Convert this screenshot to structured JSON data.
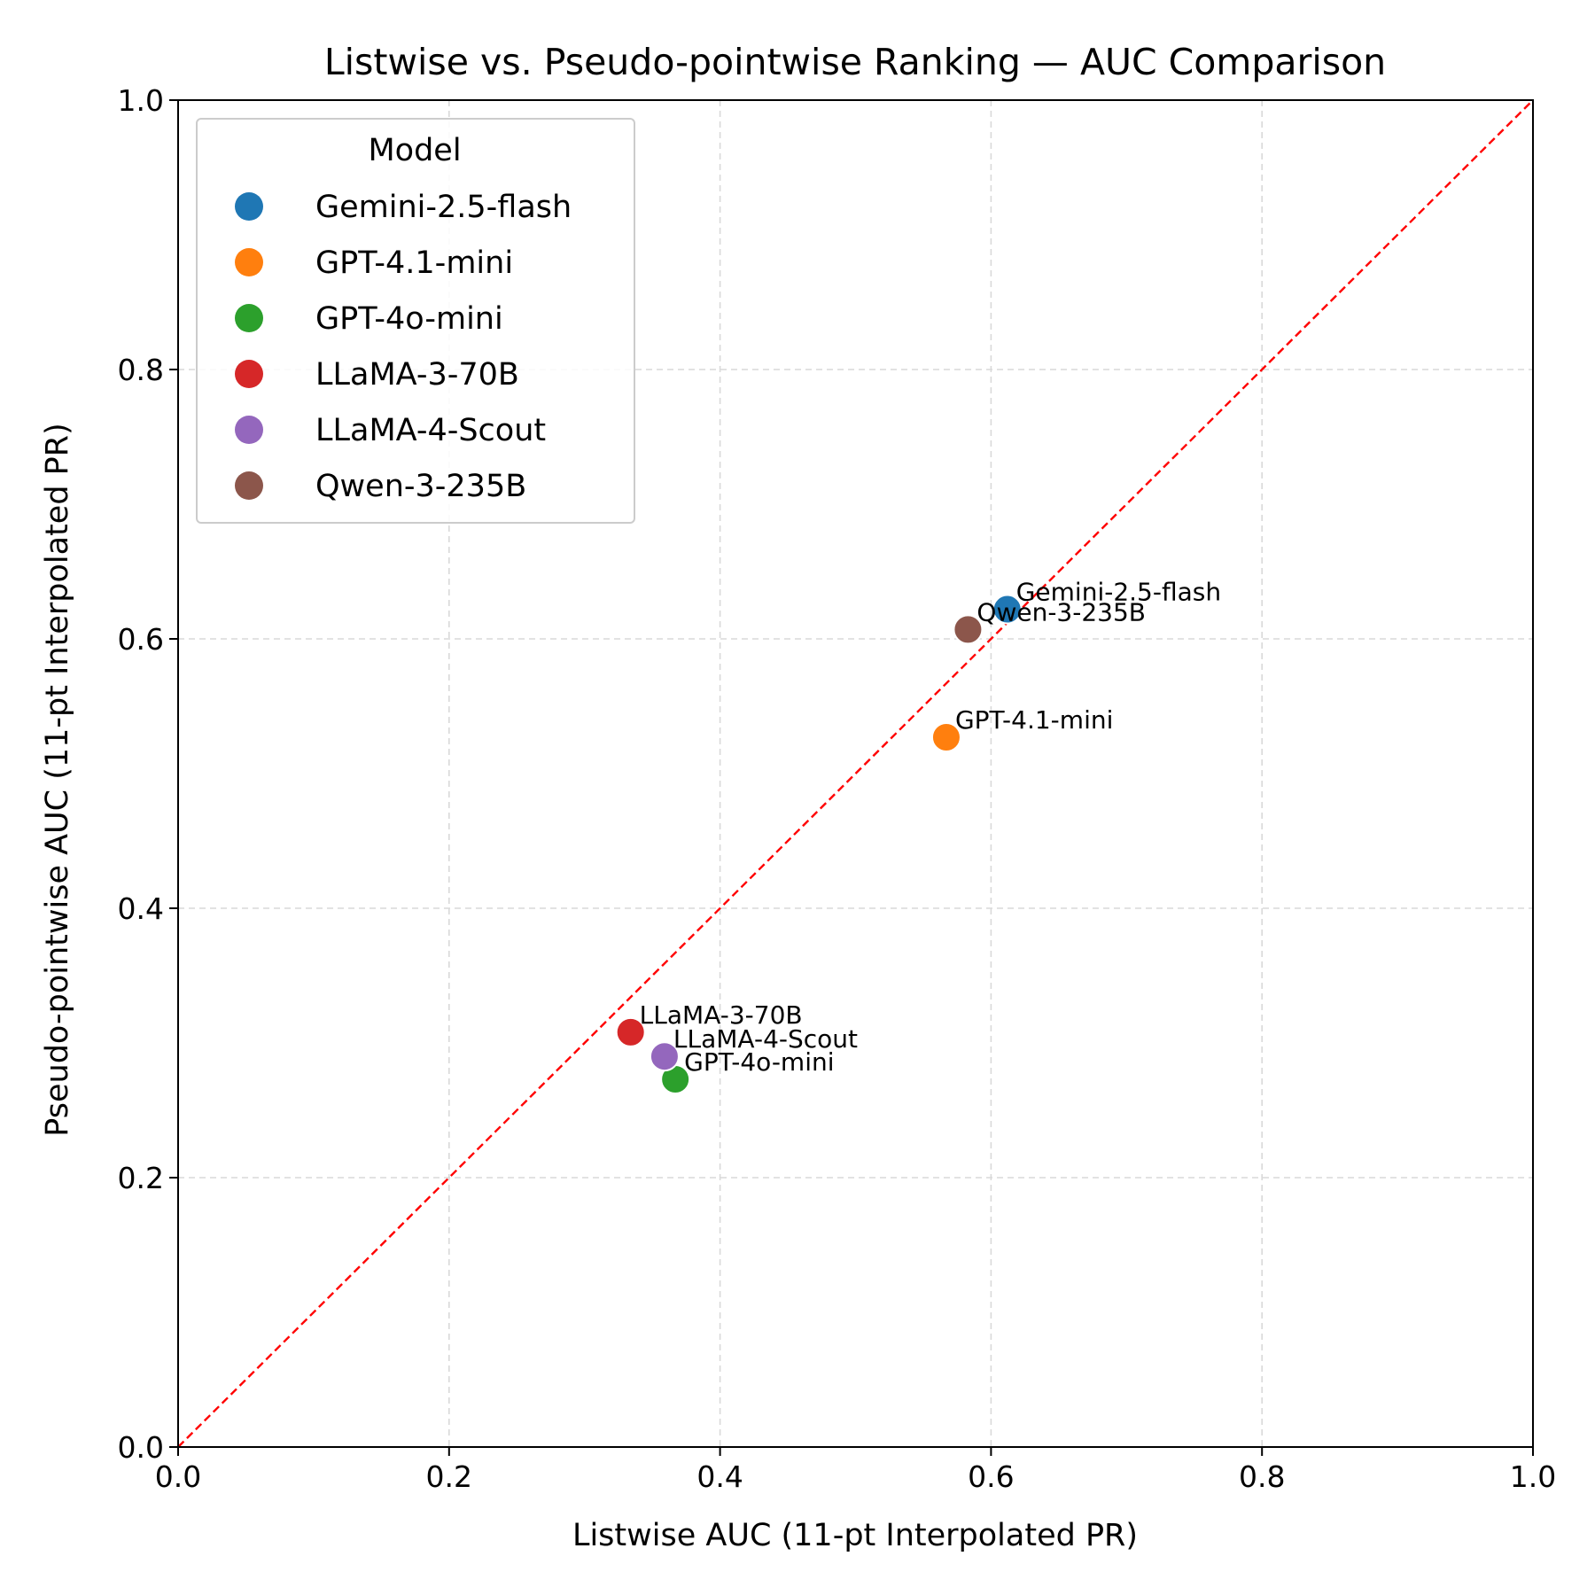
{
  "chart_data": {
    "type": "scatter",
    "title": "Listwise vs. Pseudo-pointwise Ranking — AUC Comparison",
    "xlabel": "Listwise AUC (11-pt Interpolated PR)",
    "ylabel": "Pseudo-pointwise AUC (11-pt Interpolated PR)",
    "xlim": [
      0.0,
      1.0
    ],
    "ylim": [
      0.0,
      1.0
    ],
    "xticks": [
      "0.0",
      "0.2",
      "0.4",
      "0.6",
      "0.8",
      "1.0"
    ],
    "yticks": [
      "0.0",
      "0.2",
      "0.4",
      "0.6",
      "0.8",
      "1.0"
    ],
    "grid": true,
    "reference_line": {
      "type": "y=x",
      "style": "dashed",
      "color": "#ff0000"
    },
    "legend": {
      "title": "Model",
      "placement": "top-left"
    },
    "series": [
      {
        "name": "Gemini-2.5-flash",
        "x": 0.612,
        "y": 0.622,
        "color": "#1f77b4"
      },
      {
        "name": "GPT-4.1-mini",
        "x": 0.567,
        "y": 0.527,
        "color": "#ff7f0e"
      },
      {
        "name": "GPT-4o-mini",
        "x": 0.367,
        "y": 0.273,
        "color": "#2ca02c"
      },
      {
        "name": "LLaMA-3-70B",
        "x": 0.334,
        "y": 0.308,
        "color": "#d62728"
      },
      {
        "name": "LLaMA-4-Scout",
        "x": 0.359,
        "y": 0.29,
        "color": "#9467bd"
      },
      {
        "name": "Qwen-3-235B",
        "x": 0.583,
        "y": 0.607,
        "color": "#8c564b"
      }
    ]
  }
}
